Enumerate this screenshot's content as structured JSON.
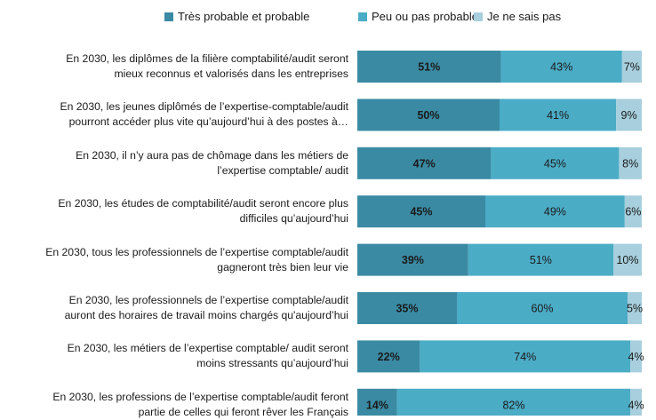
{
  "chart_data": {
    "type": "bar",
    "orientation": "horizontal",
    "stacked": true,
    "percent_stacked": true,
    "legend_position": "top",
    "grid": false,
    "categories": [
      [
        "En 2030,  les diplômes de la filière comptabilité/audit seront",
        "mieux reconnus et valorisés dans les entreprises"
      ],
      [
        "En 2030,  les jeunes diplômés de l’expertise-comptable/audit",
        "pourront accéder plus vite qu’aujourd’hui à des postes à…"
      ],
      [
        "En 2030,  il n’y aura pas de chômage dans les métiers de",
        "l’expertise comptable/ audit"
      ],
      [
        "En 2030,  les études de comptabilité/audit seront encore plus",
        "difficiles qu’aujourd’hui"
      ],
      [
        "En 2030,  tous les professionnels de l’expertise comptable/audit",
        "gagneront très bien leur vie"
      ],
      [
        "En 2030,  les professionnels de l’expertise comptable/audit",
        "auront des horaires de travail moins chargés qu'aujourd’hui"
      ],
      [
        "En 2030,  les métiers de l’expertise comptable/ audit seront",
        "moins stressants qu’aujourd’hui"
      ],
      [
        "En 2030,  les professions de l’expertise comptable/audit feront",
        "partie de celles qui feront rêver les Français"
      ]
    ],
    "series": [
      {
        "name": "Très probable et probable",
        "color": "#3a8aa3",
        "values": [
          51,
          50,
          47,
          45,
          39,
          35,
          22,
          14
        ],
        "labels": [
          "51%",
          "50%",
          "47%",
          "45%",
          "39%",
          "35%",
          "22%",
          "14%"
        ]
      },
      {
        "name": "Peu ou pas probable",
        "color": "#4bacc6",
        "values": [
          43,
          41,
          45,
          49,
          51,
          60,
          74,
          82
        ],
        "labels": [
          "43%",
          "41%",
          "45%",
          "49%",
          "51%",
          "60%",
          "74%",
          "82%"
        ]
      },
      {
        "name": "Je ne sais pas",
        "color": "#a7cfdd",
        "values": [
          7,
          9,
          8,
          6,
          10,
          5,
          4,
          4
        ],
        "labels": [
          "7%",
          "9%",
          "8%",
          "6%",
          "10%",
          "5%",
          "4%",
          "4%"
        ]
      }
    ]
  }
}
